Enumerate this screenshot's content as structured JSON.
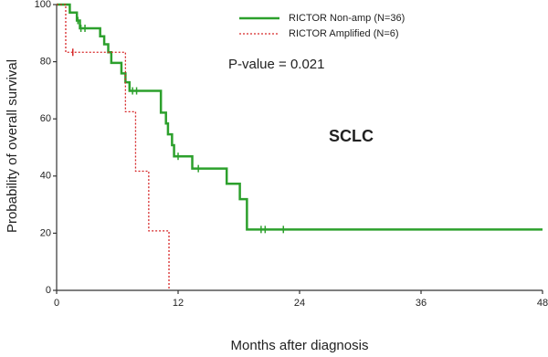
{
  "chart_data": {
    "type": "step",
    "x_label": "Months after diagnosis",
    "y_label": "Probability of overall survival",
    "annotations": [
      "P-value = 0.021",
      "SCLC"
    ],
    "xlim": [
      0,
      48
    ],
    "xticks": [
      0,
      12,
      24,
      36,
      48
    ],
    "ylim": [
      0,
      100
    ],
    "yticks": [
      0,
      20,
      40,
      60,
      80,
      100
    ],
    "series": [
      {
        "name": "RICTOR Non-amp (N=36)",
        "color": "#2ca02c",
        "dash": "solid",
        "x": [
          0,
          1.3,
          2.0,
          2.3,
          4.3,
          4.7,
          5.1,
          5.4,
          6.4,
          6.8,
          7.2,
          10.3,
          10.8,
          11.0,
          11.4,
          11.6,
          13.4,
          16.8,
          18.1,
          18.8,
          48
        ],
        "values": [
          100,
          97.2,
          94.4,
          91.7,
          88.9,
          86.1,
          83.3,
          79.6,
          75.9,
          72.8,
          69.8,
          62.2,
          58.4,
          54.6,
          50.8,
          46.9,
          42.6,
          37.3,
          31.9,
          21.3,
          21.3
        ],
        "censor_x": [
          2.1,
          2.4,
          2.8,
          7.5,
          7.9,
          12.0,
          14.0,
          20.2,
          20.6,
          22.4
        ],
        "censor_values": [
          94.4,
          91.7,
          91.7,
          69.8,
          69.8,
          46.9,
          42.6,
          21.3,
          21.3,
          21.3
        ]
      },
      {
        "name": "RICTOR Amplified (N=6)",
        "color": "#d62728",
        "dash": "dotted",
        "x": [
          0,
          0.9,
          6.8,
          7.8,
          9.1,
          11.1
        ],
        "values": [
          100,
          83.3,
          62.5,
          41.7,
          20.8,
          0
        ],
        "censor_x": [
          1.6
        ],
        "censor_values": [
          83.3
        ]
      }
    ]
  }
}
